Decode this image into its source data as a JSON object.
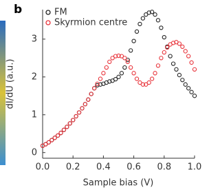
{
  "panel_label": "b",
  "chart_data": {
    "type": "scatter",
    "x_label": "Sample bias (V)",
    "y_label": "dI/dU (a.u.)",
    "x": [
      0.0,
      0.02,
      0.04,
      0.06,
      0.08,
      0.1,
      0.12,
      0.14,
      0.16,
      0.18,
      0.2,
      0.22,
      0.24,
      0.26,
      0.28,
      0.3,
      0.32,
      0.34,
      0.36,
      0.38,
      0.4,
      0.42,
      0.44,
      0.46,
      0.48,
      0.5,
      0.52,
      0.54,
      0.56,
      0.58,
      0.6,
      0.62,
      0.64,
      0.66,
      0.68,
      0.7,
      0.72,
      0.74,
      0.76,
      0.78,
      0.8,
      0.82,
      0.84,
      0.86,
      0.88,
      0.9,
      0.92,
      0.94,
      0.96,
      0.98,
      1.0
    ],
    "series": [
      {
        "name": "FM",
        "color": "#222222",
        "values": [
          0.18,
          0.22,
          0.27,
          0.33,
          0.39,
          0.45,
          0.52,
          0.6,
          0.68,
          0.77,
          0.86,
          0.96,
          1.06,
          1.17,
          1.28,
          1.4,
          1.55,
          1.7,
          1.78,
          1.8,
          1.82,
          1.85,
          1.88,
          1.9,
          1.94,
          2.0,
          2.1,
          2.25,
          2.45,
          2.7,
          2.95,
          3.2,
          3.4,
          3.55,
          3.65,
          3.7,
          3.72,
          3.65,
          3.5,
          3.3,
          3.05,
          2.8,
          2.55,
          2.35,
          2.2,
          2.05,
          1.92,
          1.8,
          1.7,
          1.6,
          1.5
        ]
      },
      {
        "name": "Skyrmion centre",
        "color": "#e8333a",
        "values": [
          0.18,
          0.22,
          0.27,
          0.33,
          0.39,
          0.45,
          0.52,
          0.6,
          0.68,
          0.77,
          0.86,
          0.96,
          1.06,
          1.17,
          1.28,
          1.4,
          1.55,
          1.7,
          1.82,
          1.95,
          2.1,
          2.25,
          2.4,
          2.5,
          2.55,
          2.56,
          2.55,
          2.5,
          2.4,
          2.25,
          2.1,
          1.95,
          1.85,
          1.8,
          1.8,
          1.85,
          1.95,
          2.1,
          2.3,
          2.5,
          2.65,
          2.78,
          2.86,
          2.9,
          2.92,
          2.88,
          2.8,
          2.68,
          2.55,
          2.38,
          2.2
        ]
      }
    ],
    "xlim": [
      0.0,
      1.0
    ],
    "xticks": [
      {
        "value": 0.0,
        "label": "0.0"
      },
      0.2,
      0.4,
      0.6,
      0.8,
      {
        "value": 1.0,
        "label": "1.0"
      }
    ],
    "ylim": [
      -0.15,
      3.78
    ],
    "yticks": [
      0,
      1,
      2,
      3
    ],
    "legend": "top-left"
  }
}
